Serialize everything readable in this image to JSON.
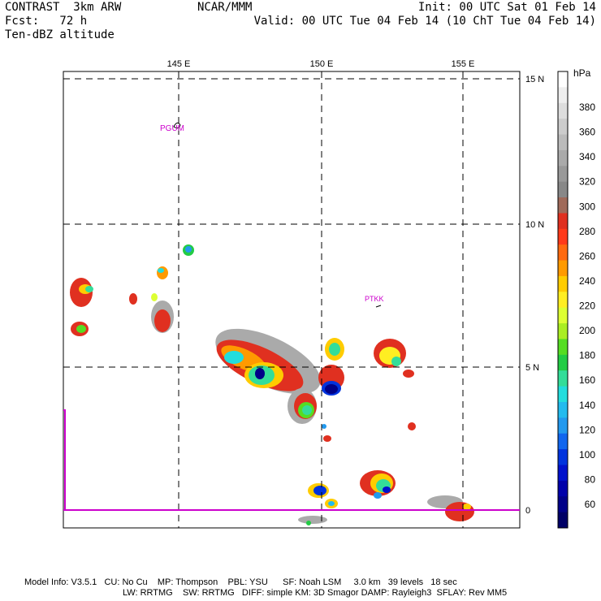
{
  "header": {
    "left_line1": "CONTRAST  3km ARW",
    "left_line2": "Fcst:   72 h",
    "left_line3": "Ten-dBZ altitude",
    "center_line1": "NCAR/MMM",
    "right_line1": "Init: 00 UTC Sat 01 Feb 14",
    "right_line2": "Valid: 00 UTC Tue 04 Feb 14 (10 ChT Tue 04 Feb 14)"
  },
  "map": {
    "lon_labels": [
      "145 E",
      "150 E",
      "155 E"
    ],
    "lat_labels": [
      "15 N",
      "10 N",
      "5 N",
      "0"
    ],
    "stations": [
      "PGUM",
      "PTKK"
    ],
    "station_color": "#cc00cc",
    "equator_color": "#cc00cc"
  },
  "colorbar": {
    "unit": "hPa",
    "labels": [
      "380",
      "360",
      "340",
      "320",
      "300",
      "280",
      "260",
      "240",
      "220",
      "200",
      "180",
      "160",
      "140",
      "120",
      "100",
      "80",
      "60"
    ],
    "colors": [
      "#ffffff",
      "#eeeeee",
      "#dddddd",
      "#cccccc",
      "#bbbbbb",
      "#aaaaaa",
      "#999999",
      "#888888",
      "#a06a5a",
      "#e03020",
      "#ff3a1a",
      "#ff6a10",
      "#ff9a00",
      "#ffcc00",
      "#ffee22",
      "#ddff33",
      "#aaee22",
      "#55dd22",
      "#22cc44",
      "#33dd99",
      "#22dddd",
      "#22bbee",
      "#2299ee",
      "#1166ee",
      "#0033dd",
      "#0011cc",
      "#0000aa",
      "#000088",
      "#000066"
    ]
  },
  "footer": {
    "line1": "Model Info: V3.5.1   CU: No Cu    MP: Thompson    PBL: YSU      SF: Noah LSM     3.0 km   39 levels   18 sec",
    "line2": "LW: RRTMG    SW: RRTMG   DIFF: simple KM: 3D Smagor DAMP: Rayleigh3  SFLAY: Rev MM5"
  }
}
